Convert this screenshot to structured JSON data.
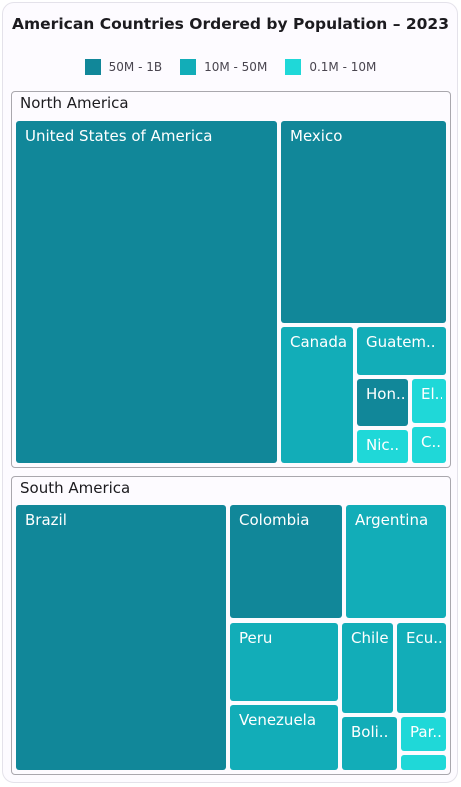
{
  "chart_data": {
    "type": "treemap",
    "title": "American Countries Ordered by Population – 2023",
    "legend": {
      "position": "top",
      "items": [
        {
          "label": "50M - 1B",
          "color": "#118799"
        },
        {
          "label": "10M - 50M",
          "color": "#12adb8"
        },
        {
          "label": "0.1M - 10M",
          "color": "#1fd8d8"
        }
      ]
    },
    "groups": [
      {
        "name": "North America",
        "items": [
          {
            "label": "United States of America",
            "range": 0
          },
          {
            "label": "Mexico",
            "range": 0
          },
          {
            "label": "Canada",
            "range": 1
          },
          {
            "label": "Guatem..",
            "range": 1
          },
          {
            "label": "Hon..",
            "range": 0
          },
          {
            "label": "El..",
            "range": 2
          },
          {
            "label": "Nic..",
            "range": 2
          },
          {
            "label": "C..",
            "range": 2
          }
        ]
      },
      {
        "name": "South America",
        "items": [
          {
            "label": "Brazil",
            "range": 0
          },
          {
            "label": "Colombia",
            "range": 0
          },
          {
            "label": "Argentina",
            "range": 1
          },
          {
            "label": "Peru",
            "range": 1
          },
          {
            "label": "Chile",
            "range": 1
          },
          {
            "label": "Ecu..",
            "range": 1
          },
          {
            "label": "Venezuela",
            "range": 1
          },
          {
            "label": "Boli..",
            "range": 1
          },
          {
            "label": "Par..",
            "range": 2
          },
          {
            "label": "",
            "range": 2
          }
        ]
      }
    ]
  }
}
